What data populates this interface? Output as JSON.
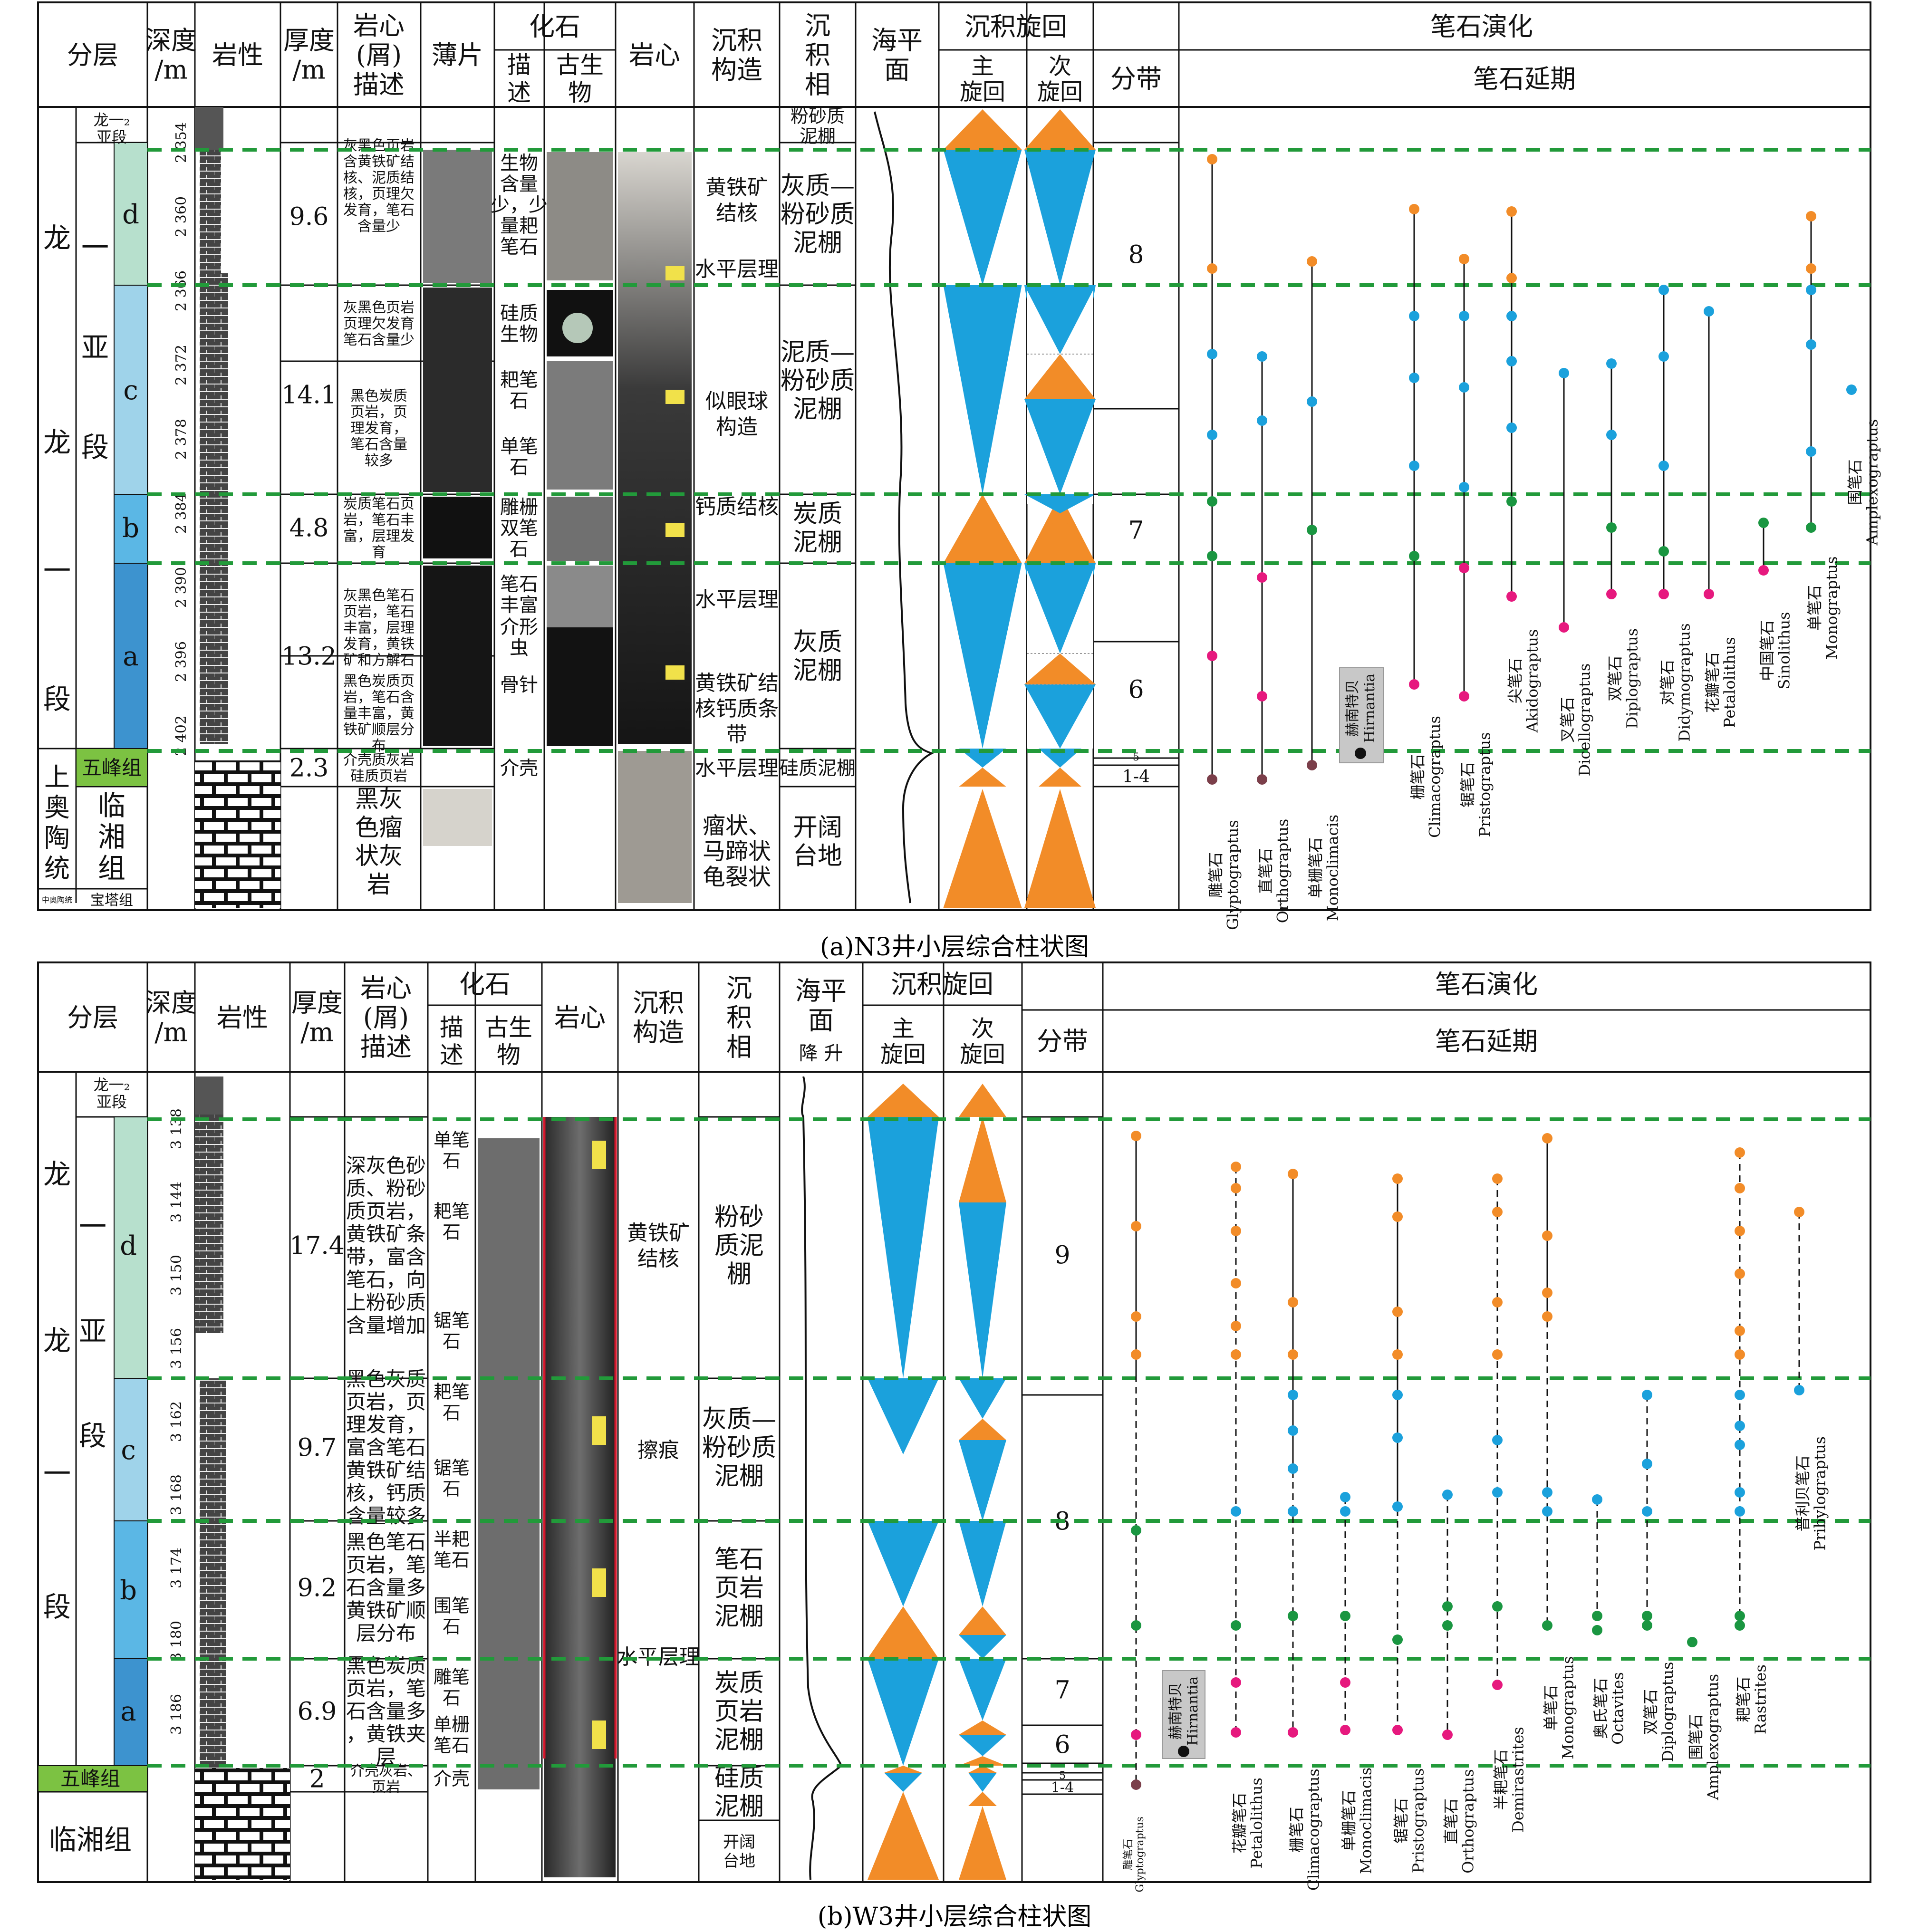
{
  "colors": {
    "orange": "#f28c28",
    "blue": "#1ba1dc",
    "green": "#1a9641",
    "pink": "#e6197e",
    "brown": "#7b3f4a",
    "dash_green": "#229a3a",
    "sub_d": "#b7e0cd",
    "sub_c": "#9fd3ea",
    "sub_b": "#5bb7e5",
    "sub_a": "#3d93cf",
    "wufeng": "#7cc242"
  },
  "panel_a": {
    "caption": "(a)N3井小层综合柱状图",
    "headers": {
      "layer": "分层",
      "depth": "深度\n/m",
      "lith": "岩性",
      "thick": "厚度\n/m",
      "desc": "岩心\n(屑)\n描述",
      "thin": "薄片",
      "fossil": "化石",
      "fossil_desc": "描\n述",
      "fossil_bio": "古生\n物",
      "core": "岩心",
      "struct": "沉积\n构造",
      "facies": "沉\n积\n相",
      "sea": "海平\n面",
      "cycle": "沉积旋回",
      "main_cycle": "主\n旋回",
      "sub_cycle": "次\n旋回",
      "grapt": "笔石演化",
      "zone": "分带",
      "range": "笔石延期"
    },
    "strat": {
      "long1": "龙\n一\n段",
      "long1_1": "一\n亚\n段",
      "long1_long": "龙",
      "long1_2": "龙一₂\n亚段",
      "sub_d": "d",
      "sub_c": "c",
      "sub_b": "b",
      "sub_a": "a",
      "upper_ord": "上\n奥\n陶\n统",
      "wufeng": "五峰组",
      "linxiang": "临\n湘\n组",
      "mid_ord": "中奥陶统",
      "baota": "宝塔组"
    },
    "depth_ticks": [
      "2 354",
      "2 360",
      "2 366",
      "2 372",
      "2 378",
      "2 384",
      "2 390",
      "2 396",
      "2 402"
    ],
    "thickness": [
      "9.6",
      "14.1",
      "4.8",
      "13.2",
      "2.3"
    ],
    "descriptions": [
      "灰黑色页岩\n含黄铁矿结\n核、泥质结\n核，页理欠\n发育，笔石\n含量少",
      "灰黑色页岩\n页理欠发育\n笔石含量少",
      "黑色炭质\n页岩，页\n理发育，\n笔石含量\n较多",
      "炭质笔石页\n岩，笔石丰\n富，层理发\n育",
      "灰黑色笔石\n页岩，笔石\n丰富，层理\n发育，黄铁\n矿和方解石",
      "黑色炭质页\n岩，笔石含\n量丰富，黄\n铁矿顺层分\n布",
      "介壳质灰岩\n硅质页岩",
      "黑灰\n色瘤\n状灰\n岩"
    ],
    "fossil_desc": [
      "生物\n含量\n少，少\n量耙\n笔石",
      "硅质\n生物",
      "耙笔\n石",
      "单笔\n石",
      "雕栅\n双笔\n石",
      "笔石\n丰富",
      "介形\n虫",
      "骨针",
      "介壳"
    ],
    "structures": [
      "黄铁矿\n结核",
      "水平层理",
      "似眼球\n构造",
      "钙质结核",
      "水平层理",
      "黄铁矿结\n核钙质条\n带",
      "水平层理",
      "瘤状、\n马蹄状\n龟裂状"
    ],
    "facies": [
      "粉砂质\n泥棚",
      "灰质—\n粉砂质\n泥棚",
      "泥质—\n粉砂质\n泥棚",
      "炭质\n泥棚",
      "灰质\n泥棚",
      "硅质泥棚",
      "开阔\n台地"
    ],
    "zones": [
      "8",
      "7",
      "6",
      "5",
      "1-4"
    ],
    "species": [
      {
        "cn": "雕笔石",
        "lat": "Glyptograptus"
      },
      {
        "cn": "直笔石",
        "lat": "Orthograptus"
      },
      {
        "cn": "单栅笔石",
        "lat": "Monoclimacis"
      },
      {
        "cn": "赫南特贝",
        "lat": "Hirnantia"
      },
      {
        "cn": "栅笔石",
        "lat": "Climacograptus"
      },
      {
        "cn": "锯笔石",
        "lat": "Pristograptus"
      },
      {
        "cn": "尖笔石",
        "lat": "Akidograptus"
      },
      {
        "cn": "叉笔石",
        "lat": "Dicellograptus"
      },
      {
        "cn": "双笔石",
        "lat": "Diplograptus"
      },
      {
        "cn": "对笔石",
        "lat": "Didymograptus"
      },
      {
        "cn": "花瓣笔石",
        "lat": "Petalolithus"
      },
      {
        "cn": "中国笔石",
        "lat": "Sinolithus"
      },
      {
        "cn": "单笔石",
        "lat": "Monograptus"
      },
      {
        "cn": "围笔石",
        "lat": "Amplexograptus"
      }
    ]
  },
  "panel_b": {
    "caption": "(b)W3井小层综合柱状图",
    "headers": {
      "layer": "分层",
      "depth": "深度\n/m",
      "lith": "岩性",
      "thick": "厚度\n/m",
      "desc": "岩心\n(屑)\n描述",
      "fossil": "化石",
      "fossil_desc": "描\n述",
      "fossil_bio": "古生\n物",
      "core": "岩心",
      "struct": "沉积\n构造",
      "facies": "沉\n积\n相",
      "sea": "海平\n面",
      "sea_axis": "降 升",
      "cycle": "沉积旋回",
      "main_cycle": "主\n旋回",
      "sub_cycle": "次\n旋回",
      "grapt": "笔石演化",
      "zone": "分带",
      "range": "笔石延期"
    },
    "strat": {
      "long1": "龙\n一\n段",
      "long1_1": "一\n亚\n段",
      "long1_long": "龙",
      "long1_2": "龙一₂\n亚段",
      "sub_d": "d",
      "sub_c": "c",
      "sub_b": "b",
      "sub_a": "a",
      "wufeng": "五峰组",
      "linxiang": "临湘组"
    },
    "depth_ticks": [
      "3 138",
      "3 144",
      "3 150",
      "3 156",
      "3 162",
      "3 168",
      "3 174",
      "3 180",
      "3 186"
    ],
    "thickness": [
      "17.4",
      "9.7",
      "9.2",
      "6.9",
      "2"
    ],
    "descriptions": [
      "深灰色砂\n质、粉砂\n质页岩，\n黄铁矿条\n带，富含\n笔石，向\n上粉砂质\n含量增加",
      "黑色灰质\n页岩，页\n理发育，\n富含笔石\n黄铁矿结\n核，钙质\n含量较多",
      "黑色笔石\n页岩，笔\n石含量多\n黄铁矿顺\n层分布",
      "黑色炭质\n页岩，笔\n石含量多\n，黄铁夹\n层",
      "介壳灰岩、\n页岩"
    ],
    "fossil_desc": [
      "单笔\n石",
      "耙笔\n石",
      "锯笔\n石",
      "耙笔\n石",
      "锯笔\n石",
      "半耙\n笔石",
      "围笔\n石",
      "雕笔\n石",
      "单栅\n笔石",
      "介壳"
    ],
    "structures": [
      "黄铁矿\n结核",
      "擦痕",
      "水平层理"
    ],
    "facies": [
      "粉砂\n质泥\n棚",
      "灰质—\n粉砂质\n泥棚",
      "笔石\n页岩\n泥棚",
      "炭质\n页岩\n泥棚",
      "硅质\n泥棚",
      "开阔\n台地"
    ],
    "zones": [
      "9",
      "8",
      "7",
      "6",
      "5",
      "1-4"
    ],
    "species": [
      {
        "cn": "雕笔石",
        "lat": "Glyptograptus"
      },
      {
        "cn": "赫南特贝",
        "lat": "Hirnantia"
      },
      {
        "cn": "花瓣笔石",
        "lat": "Petalolithus"
      },
      {
        "cn": "栅笔石",
        "lat": "Climacograptus"
      },
      {
        "cn": "单栅笔石",
        "lat": "Monoclimacis"
      },
      {
        "cn": "锯笔石",
        "lat": "Pristograptus"
      },
      {
        "cn": "直笔石",
        "lat": "Orthograptus"
      },
      {
        "cn": "半耙笔石",
        "lat": "Demirastrites"
      },
      {
        "cn": "单笔石",
        "lat": "Monograptus"
      },
      {
        "cn": "奥氏笔石",
        "lat": "Octavites"
      },
      {
        "cn": "双笔石",
        "lat": "Diplograptus"
      },
      {
        "cn": "围笔石",
        "lat": "Amplexograptus"
      },
      {
        "cn": "耙笔石",
        "lat": "Rastrites"
      },
      {
        "cn": "普利贝笔石",
        "lat": "Pribylograptus"
      }
    ]
  }
}
